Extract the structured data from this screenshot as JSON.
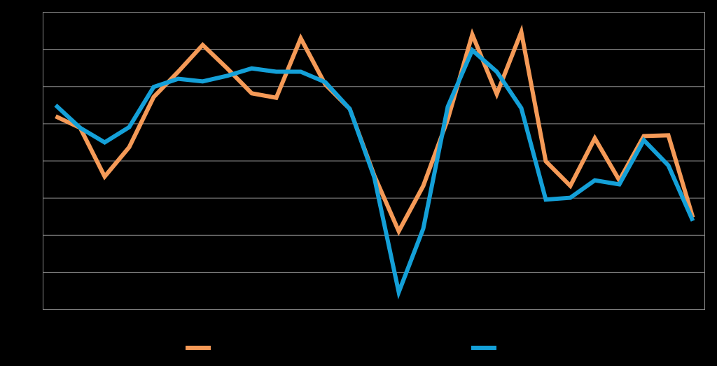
{
  "chart_data": {
    "type": "line",
    "categories": [
      null,
      null,
      null,
      null,
      null,
      null,
      null,
      null,
      null,
      null,
      null,
      null,
      null,
      null,
      null,
      null,
      null,
      null,
      null,
      null,
      null,
      null,
      null,
      null,
      null,
      null,
      null
    ],
    "series": [
      {
        "color": "#f59a57",
        "values": [
          5.2,
          4.89,
          3.58,
          4.37,
          5.72,
          6.4,
          7.12,
          6.49,
          5.82,
          5.7,
          7.3,
          6.06,
          5.4,
          3.61,
          2.11,
          3.33,
          5.12,
          7.4,
          5.8,
          7.47,
          3.99,
          3.33,
          4.61,
          3.48,
          4.67,
          4.69,
          2.48
        ]
      },
      {
        "color": "#14a0d8",
        "values": [
          5.5,
          4.89,
          4.5,
          4.91,
          5.99,
          6.21,
          6.14,
          6.29,
          6.49,
          6.4,
          6.4,
          6.12,
          5.4,
          3.56,
          0.47,
          2.18,
          5.46,
          6.98,
          6.4,
          5.42,
          2.96,
          3.01,
          3.48,
          3.37,
          4.56,
          3.88,
          2.39
        ]
      }
    ],
    "ylim": [
      0,
      8
    ],
    "yticks": [
      0,
      1,
      2,
      3,
      4,
      5,
      6,
      7,
      8
    ],
    "grid": true,
    "legend": "bottom"
  }
}
